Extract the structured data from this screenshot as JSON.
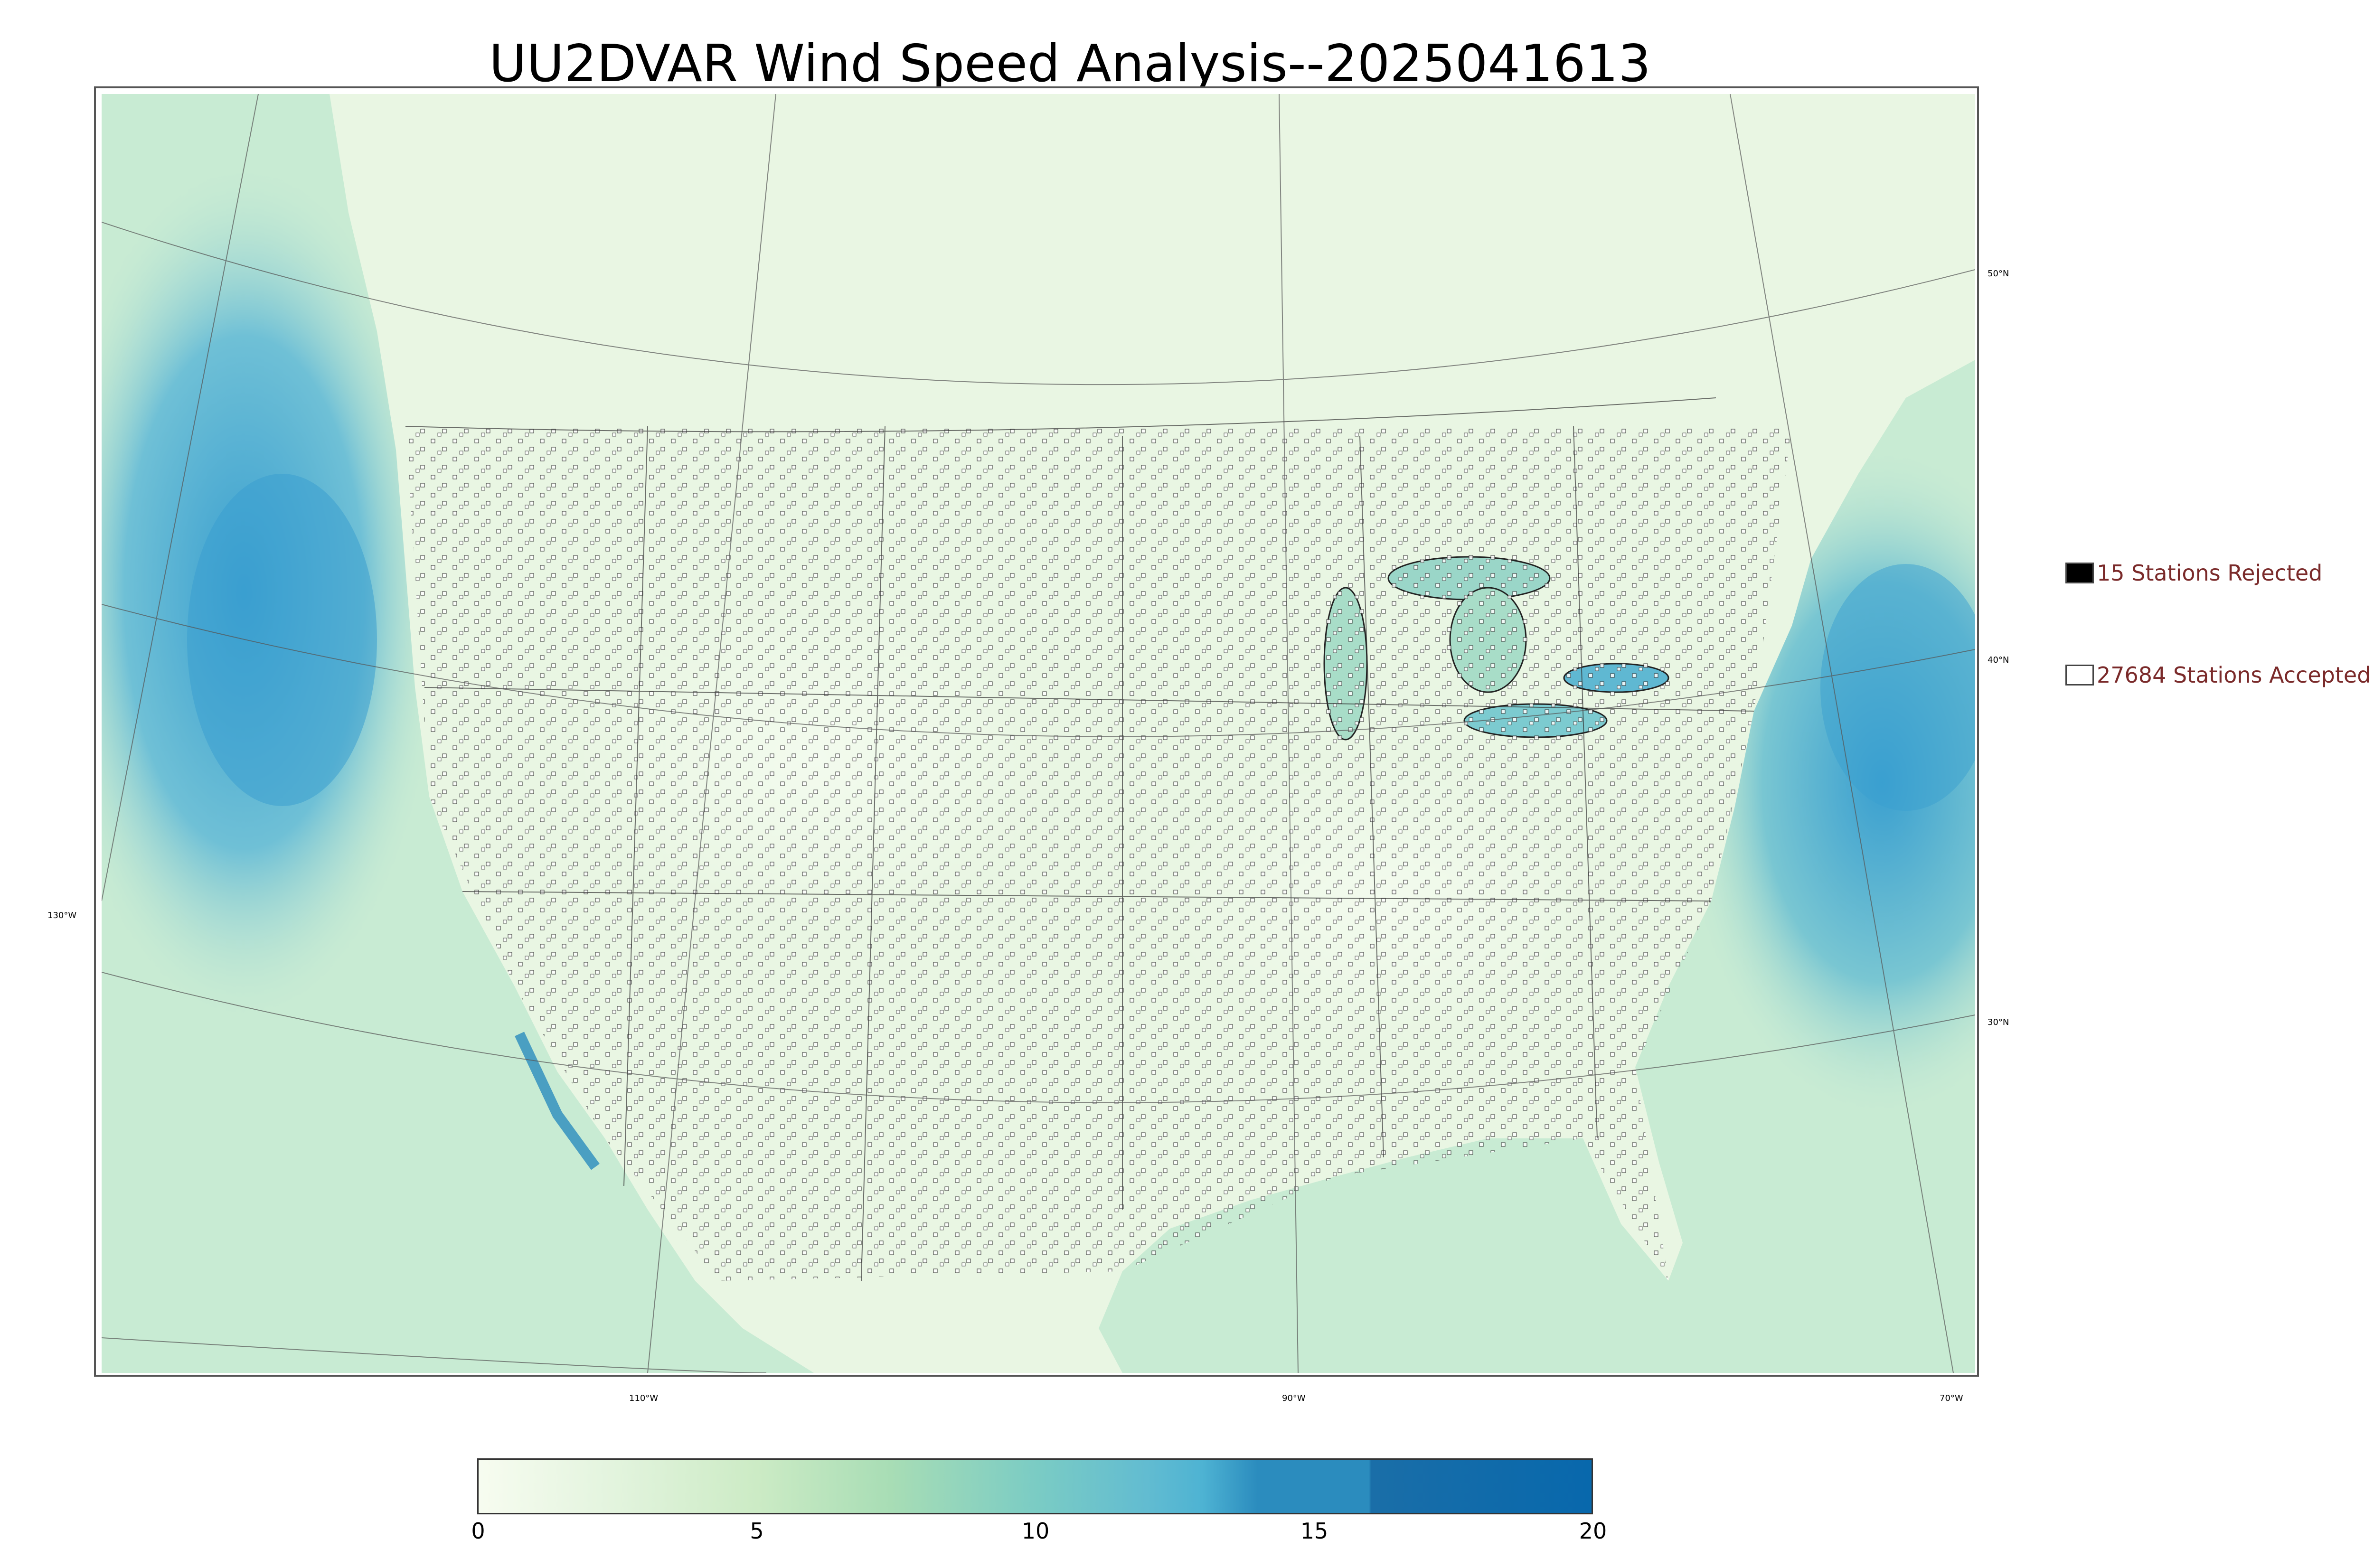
{
  "title": "UU2DVAR Wind Speed Analysis--2025041613",
  "map": {
    "lon_labels": [
      "130°W",
      "110°W",
      "90°W",
      "70°W"
    ],
    "lat_labels": [
      "50°N",
      "40°N",
      "30°N"
    ]
  },
  "legend": {
    "rejected": "15 Stations Rejected",
    "accepted": "27684 Stations Accepted"
  },
  "colorbar": {
    "ticks": [
      "0",
      "5",
      "10",
      "15",
      "20"
    ],
    "min": 0,
    "max": 20,
    "colors": [
      "#f7fcf0",
      "#ccebc5",
      "#7bccc4",
      "#4eb3d3",
      "#2b8cbe",
      "#0868ac"
    ]
  },
  "colors": {
    "land": "#e8f6e2",
    "ocean": "#bfe6d2",
    "high_wind": "#3a9fd0"
  }
}
